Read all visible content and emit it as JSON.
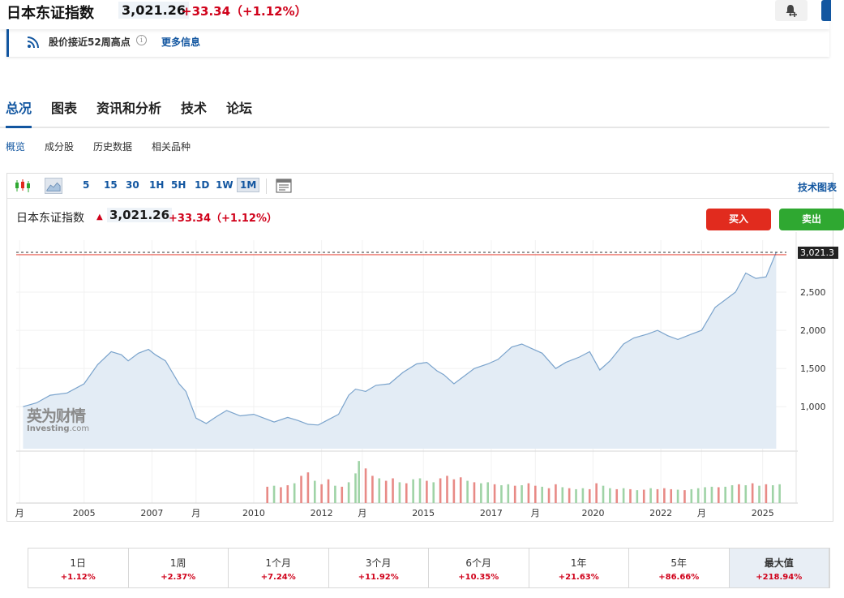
{
  "header": {
    "title": "日本东证指数",
    "price": "3,021.26",
    "change": "+33.34（+1.12%）",
    "bell_icon": "bell-plus-icon"
  },
  "notice": {
    "icon": "rss-icon",
    "text": "股价接近52周高点",
    "more": "更多信息"
  },
  "tabs": [
    {
      "label": "总况",
      "active": true
    },
    {
      "label": "图表"
    },
    {
      "label": "资讯和分析"
    },
    {
      "label": "技术"
    },
    {
      "label": "论坛"
    }
  ],
  "subtabs": [
    {
      "label": "概览",
      "active": true
    },
    {
      "label": "成分股"
    },
    {
      "label": "历史数据"
    },
    {
      "label": "相关品种"
    }
  ],
  "toolbar": {
    "intervals": [
      "5",
      "15",
      "30",
      "1H",
      "5H",
      "1D",
      "1W",
      "1M"
    ],
    "active_interval": "1M",
    "right_link": "技术图表"
  },
  "legend": {
    "name": "日本东证指数",
    "price": "3,021.26",
    "change": "+33.34（+1.12%）"
  },
  "actions": {
    "buy": "买入",
    "sell": "卖出"
  },
  "watermark": {
    "cn": "英为财情",
    "en": "Investing",
    "suffix": ".com"
  },
  "colors": {
    "up": "#d0021b",
    "accent": "#1256a0",
    "buy": "#e12b1e",
    "sell": "#2fa831"
  },
  "chart_data": {
    "type": "area",
    "series": [
      {
        "x": [
          2003.2,
          2003.6,
          2004.0,
          2004.5,
          2005.0,
          2005.4,
          2005.8,
          2006.1,
          2006.3,
          2006.6,
          2006.9,
          2007.1,
          2007.4,
          2007.8,
          2008.0,
          2008.3,
          2008.6,
          2008.9,
          2009.2,
          2009.6,
          2010.0,
          2010.3,
          2010.6,
          2011.0,
          2011.3,
          2011.6,
          2011.9,
          2012.2,
          2012.5,
          2012.8,
          2013.0,
          2013.3,
          2013.6,
          2014.0,
          2014.4,
          2014.8,
          2015.1,
          2015.4,
          2015.6,
          2015.9,
          2016.2,
          2016.5,
          2016.9,
          2017.2,
          2017.6,
          2017.9,
          2018.2,
          2018.5,
          2018.9,
          2019.2,
          2019.6,
          2019.9,
          2020.2,
          2020.5,
          2020.9,
          2021.2,
          2021.6,
          2021.9,
          2022.2,
          2022.5,
          2022.9,
          2023.2,
          2023.6,
          2023.9,
          2024.2,
          2024.5,
          2024.8,
          2025.1,
          2025.4
        ],
        "values": [
          1000,
          1050,
          1150,
          1180,
          1300,
          1550,
          1720,
          1680,
          1600,
          1700,
          1750,
          1680,
          1600,
          1300,
          1200,
          850,
          780,
          870,
          950,
          880,
          900,
          850,
          800,
          860,
          820,
          770,
          760,
          830,
          900,
          1150,
          1230,
          1200,
          1280,
          1300,
          1450,
          1560,
          1580,
          1470,
          1420,
          1300,
          1400,
          1500,
          1560,
          1620,
          1780,
          1820,
          1760,
          1700,
          1500,
          1580,
          1650,
          1720,
          1480,
          1600,
          1820,
          1900,
          1950,
          2000,
          1930,
          1880,
          1950,
          2000,
          2300,
          2400,
          2500,
          2750,
          2680,
          2700,
          3021.26
        ]
      }
    ],
    "volume": [
      {
        "x": 2010.4,
        "v": 0.33,
        "up": false
      },
      {
        "x": 2010.6,
        "v": 0.35,
        "up": true
      },
      {
        "x": 2010.8,
        "v": 0.32,
        "up": false
      },
      {
        "x": 2011.0,
        "v": 0.36,
        "up": false
      },
      {
        "x": 2011.2,
        "v": 0.4,
        "up": true
      },
      {
        "x": 2011.4,
        "v": 0.55,
        "up": false
      },
      {
        "x": 2011.6,
        "v": 0.62,
        "up": false
      },
      {
        "x": 2011.8,
        "v": 0.45,
        "up": true
      },
      {
        "x": 2012.0,
        "v": 0.38,
        "up": false
      },
      {
        "x": 2012.2,
        "v": 0.48,
        "up": false
      },
      {
        "x": 2012.4,
        "v": 0.35,
        "up": true
      },
      {
        "x": 2012.6,
        "v": 0.33,
        "up": false
      },
      {
        "x": 2012.8,
        "v": 0.42,
        "up": true
      },
      {
        "x": 2013.0,
        "v": 0.6,
        "up": true
      },
      {
        "x": 2013.1,
        "v": 0.85,
        "up": true
      },
      {
        "x": 2013.3,
        "v": 0.7,
        "up": false
      },
      {
        "x": 2013.5,
        "v": 0.55,
        "up": false
      },
      {
        "x": 2013.7,
        "v": 0.5,
        "up": true
      },
      {
        "x": 2013.9,
        "v": 0.45,
        "up": false
      },
      {
        "x": 2014.1,
        "v": 0.5,
        "up": false
      },
      {
        "x": 2014.3,
        "v": 0.42,
        "up": true
      },
      {
        "x": 2014.5,
        "v": 0.4,
        "up": false
      },
      {
        "x": 2014.7,
        "v": 0.48,
        "up": true
      },
      {
        "x": 2014.9,
        "v": 0.5,
        "up": true
      },
      {
        "x": 2015.1,
        "v": 0.45,
        "up": false
      },
      {
        "x": 2015.3,
        "v": 0.42,
        "up": true
      },
      {
        "x": 2015.5,
        "v": 0.5,
        "up": false
      },
      {
        "x": 2015.7,
        "v": 0.55,
        "up": false
      },
      {
        "x": 2015.9,
        "v": 0.48,
        "up": false
      },
      {
        "x": 2016.1,
        "v": 0.52,
        "up": false
      },
      {
        "x": 2016.3,
        "v": 0.45,
        "up": true
      },
      {
        "x": 2016.5,
        "v": 0.42,
        "up": false
      },
      {
        "x": 2016.7,
        "v": 0.4,
        "up": true
      },
      {
        "x": 2016.9,
        "v": 0.42,
        "up": true
      },
      {
        "x": 2017.1,
        "v": 0.38,
        "up": false
      },
      {
        "x": 2017.3,
        "v": 0.36,
        "up": true
      },
      {
        "x": 2017.5,
        "v": 0.38,
        "up": true
      },
      {
        "x": 2017.7,
        "v": 0.35,
        "up": false
      },
      {
        "x": 2017.9,
        "v": 0.36,
        "up": true
      },
      {
        "x": 2018.1,
        "v": 0.4,
        "up": false
      },
      {
        "x": 2018.3,
        "v": 0.35,
        "up": false
      },
      {
        "x": 2018.5,
        "v": 0.33,
        "up": true
      },
      {
        "x": 2018.7,
        "v": 0.3,
        "up": false
      },
      {
        "x": 2018.9,
        "v": 0.38,
        "up": false
      },
      {
        "x": 2019.1,
        "v": 0.32,
        "up": true
      },
      {
        "x": 2019.3,
        "v": 0.3,
        "up": false
      },
      {
        "x": 2019.5,
        "v": 0.28,
        "up": true
      },
      {
        "x": 2019.7,
        "v": 0.3,
        "up": true
      },
      {
        "x": 2019.9,
        "v": 0.28,
        "up": false
      },
      {
        "x": 2020.1,
        "v": 0.4,
        "up": false
      },
      {
        "x": 2020.3,
        "v": 0.35,
        "up": true
      },
      {
        "x": 2020.5,
        "v": 0.3,
        "up": true
      },
      {
        "x": 2020.7,
        "v": 0.28,
        "up": false
      },
      {
        "x": 2020.9,
        "v": 0.3,
        "up": true
      },
      {
        "x": 2021.1,
        "v": 0.28,
        "up": false
      },
      {
        "x": 2021.3,
        "v": 0.26,
        "up": true
      },
      {
        "x": 2021.5,
        "v": 0.27,
        "up": false
      },
      {
        "x": 2021.7,
        "v": 0.3,
        "up": true
      },
      {
        "x": 2021.9,
        "v": 0.28,
        "up": false
      },
      {
        "x": 2022.1,
        "v": 0.3,
        "up": false
      },
      {
        "x": 2022.3,
        "v": 0.28,
        "up": false
      },
      {
        "x": 2022.5,
        "v": 0.27,
        "up": true
      },
      {
        "x": 2022.7,
        "v": 0.26,
        "up": false
      },
      {
        "x": 2022.9,
        "v": 0.28,
        "up": true
      },
      {
        "x": 2023.1,
        "v": 0.3,
        "up": true
      },
      {
        "x": 2023.3,
        "v": 0.32,
        "up": true
      },
      {
        "x": 2023.5,
        "v": 0.33,
        "up": true
      },
      {
        "x": 2023.7,
        "v": 0.32,
        "up": false
      },
      {
        "x": 2023.9,
        "v": 0.33,
        "up": true
      },
      {
        "x": 2024.1,
        "v": 0.36,
        "up": true
      },
      {
        "x": 2024.3,
        "v": 0.38,
        "up": false
      },
      {
        "x": 2024.5,
        "v": 0.36,
        "up": true
      },
      {
        "x": 2024.7,
        "v": 0.4,
        "up": false
      },
      {
        "x": 2024.9,
        "v": 0.35,
        "up": true
      },
      {
        "x": 2025.1,
        "v": 0.38,
        "up": false
      },
      {
        "x": 2025.3,
        "v": 0.36,
        "up": true
      },
      {
        "x": 2025.5,
        "v": 0.38,
        "up": true
      }
    ],
    "xticks": [
      {
        "x": 2003.1,
        "label": "月"
      },
      {
        "x": 2005.0,
        "label": "2005"
      },
      {
        "x": 2007.0,
        "label": "2007"
      },
      {
        "x": 2008.3,
        "label": "月"
      },
      {
        "x": 2010.0,
        "label": "2010"
      },
      {
        "x": 2012.0,
        "label": "2012"
      },
      {
        "x": 2013.2,
        "label": "月"
      },
      {
        "x": 2015.0,
        "label": "2015"
      },
      {
        "x": 2017.0,
        "label": "2017"
      },
      {
        "x": 2018.3,
        "label": "月"
      },
      {
        "x": 2020.0,
        "label": "2020"
      },
      {
        "x": 2022.0,
        "label": "2022"
      },
      {
        "x": 2023.2,
        "label": "月"
      },
      {
        "x": 2025.0,
        "label": "2025"
      }
    ],
    "yticks": [
      {
        "y": 1000,
        "label": "1,000"
      },
      {
        "y": 1500,
        "label": "1,500"
      },
      {
        "y": 2000,
        "label": "2,000"
      },
      {
        "y": 2500,
        "label": "2,500"
      }
    ],
    "last_value_label": "3,021.3",
    "xlim": [
      2003.0,
      2025.7
    ],
    "ylim": [
      450,
      3180
    ],
    "grid": true
  },
  "periods": [
    {
      "label": "1日",
      "value": "+1.12%"
    },
    {
      "label": "1周",
      "value": "+2.37%"
    },
    {
      "label": "1个月",
      "value": "+7.24%"
    },
    {
      "label": "3个月",
      "value": "+11.92%"
    },
    {
      "label": "6个月",
      "value": "+10.35%"
    },
    {
      "label": "1年",
      "value": "+21.63%"
    },
    {
      "label": "5年",
      "value": "+86.66%"
    },
    {
      "label": "最大值",
      "value": "+218.94%",
      "active": true
    }
  ]
}
